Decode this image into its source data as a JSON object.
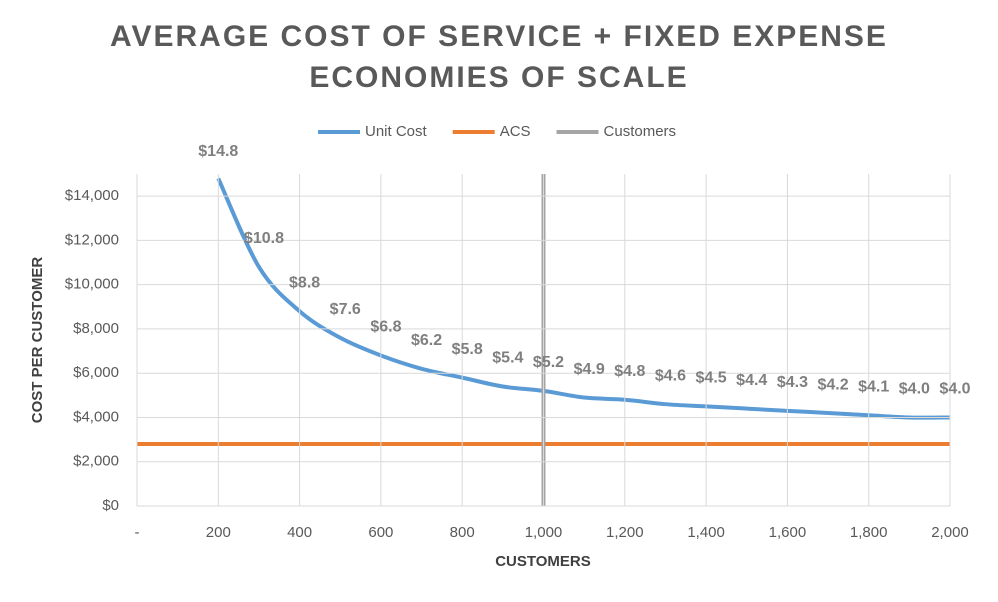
{
  "chart_data": {
    "type": "line",
    "title": [
      "AVERAGE COST OF SERVICE + FIXED EXPENSE",
      "ECONOMIES OF SCALE"
    ],
    "x_label": "CUSTOMERS",
    "y_label": "COST PER CUSTOMER",
    "xlim": [
      0,
      2000
    ],
    "xticks": [
      {
        "value": 0,
        "label": "-"
      },
      200,
      400,
      600,
      800,
      {
        "value": 1000,
        "label": "1,000"
      },
      {
        "value": 1200,
        "label": "1,200"
      },
      {
        "value": 1400,
        "label": "1,400"
      },
      {
        "value": 1600,
        "label": "1,600"
      },
      {
        "value": 1800,
        "label": "1,800"
      },
      {
        "value": 2000,
        "label": "2,000"
      }
    ],
    "ylim": [
      0,
      15000
    ],
    "yticks": [
      {
        "value": 0,
        "label": "$0"
      },
      {
        "value": 2000,
        "label": "$2,000"
      },
      {
        "value": 4000,
        "label": "$4,000"
      },
      {
        "value": 6000,
        "label": "$6,000"
      },
      {
        "value": 8000,
        "label": "$8,000"
      },
      {
        "value": 10000,
        "label": "$10,000"
      },
      {
        "value": 12000,
        "label": "$12,000"
      },
      {
        "value": 14000,
        "label": "$14,000"
      }
    ],
    "grid": true,
    "legend": "top",
    "series": [
      {
        "name": "Unit Cost",
        "color": "#5b9bd5",
        "x": [
          200,
          300,
          400,
          500,
          600,
          700,
          800,
          900,
          1000,
          1100,
          1200,
          1300,
          1400,
          1500,
          1600,
          1700,
          1800,
          1900,
          2000
        ],
        "values": [
          14800,
          10800,
          8800,
          7600,
          6800,
          6200,
          5800,
          5400,
          5200,
          4900,
          4800,
          4600,
          4500,
          4400,
          4300,
          4200,
          4100,
          4000,
          4000
        ],
        "value_labels": [
          "$14.8",
          "$10.8",
          "$8.8",
          "$7.6",
          "$6.8",
          "$6.2",
          "$5.8",
          "$5.4",
          "$5.2",
          "$4.9",
          "$4.8",
          "$4.6",
          "$4.5",
          "$4.4",
          "$4.3",
          "$4.2",
          "$4.1",
          "$4.0",
          "$4.0"
        ]
      },
      {
        "name": "ACS",
        "color": "#ed7d31",
        "x": [
          0,
          2000
        ],
        "values": [
          2800,
          2800
        ]
      },
      {
        "name": "Customers",
        "color": "#a5a5a5",
        "x": [
          1000,
          1000
        ],
        "values": [
          0,
          15000
        ]
      }
    ]
  }
}
